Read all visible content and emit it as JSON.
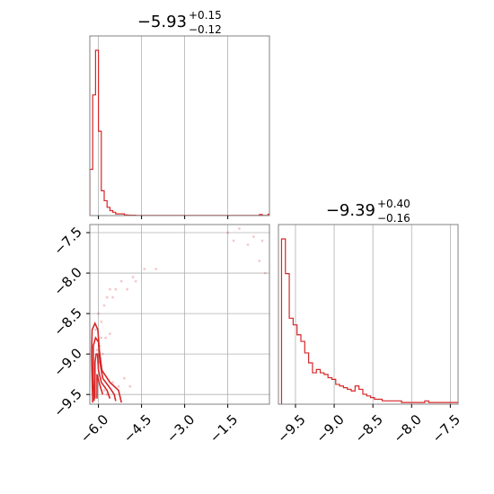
{
  "chart_data": [
    {
      "id": "hist_x",
      "type": "histogram",
      "title": {
        "value": "−5.93",
        "plus": "+0.15",
        "minus": "−0.12"
      },
      "xlim": [
        -6.3,
        -0.05
      ],
      "xticks": [
        -6.0,
        -4.5,
        -3.0,
        -1.5
      ],
      "bins": {
        "start": -6.3,
        "width": 0.1,
        "counts": [
          28,
          73,
          100,
          51,
          15,
          9,
          5,
          3,
          2,
          1,
          1,
          1,
          0.4,
          0.3,
          0.2,
          0.2,
          0.1,
          0.1,
          0.1,
          0.1,
          0.1,
          0.1,
          0.1,
          0.1,
          0.1,
          0.1,
          0.1,
          0.1,
          0.1,
          0.1,
          0.1,
          0.1,
          0.1,
          0.1,
          0.1,
          0.1,
          0.1,
          0.1,
          0.1,
          0.1,
          0.1,
          0.1,
          0.1,
          0.1,
          0.1,
          0.1,
          0.1,
          0.1,
          0.1,
          0.1,
          0.1,
          0.1,
          0.1,
          0.1,
          0.1,
          0.1,
          0.1,
          0.1,
          0.1,
          0.6,
          0.1,
          0.1,
          0.8
        ]
      },
      "color": "#d62728",
      "grid": true
    },
    {
      "id": "hist_y",
      "type": "histogram",
      "title": {
        "value": "−9.39",
        "plus": "+0.40",
        "minus": "−0.16"
      },
      "xlim": [
        -9.72,
        -7.4
      ],
      "xticks": [
        -9.5,
        -9.0,
        -8.5,
        -8.0,
        -7.5
      ],
      "bins": {
        "start": -9.68,
        "width": 0.05,
        "counts": [
          100,
          79,
          52,
          48,
          42,
          38,
          31,
          25,
          19,
          21,
          19,
          18,
          16,
          15,
          12,
          11,
          10,
          9,
          8,
          11,
          9,
          6,
          5,
          4,
          3,
          3,
          2,
          2,
          2,
          2,
          2,
          1,
          1,
          1,
          1,
          1,
          1,
          2,
          1,
          1,
          1,
          1,
          1,
          1,
          1,
          1,
          1
        ]
      },
      "color": "#d62728",
      "grid": true
    },
    {
      "id": "joint",
      "type": "scatter",
      "xlim": [
        -6.3,
        -0.05
      ],
      "ylim": [
        -9.62,
        -7.4
      ],
      "xticks": [
        -6.0,
        -4.5,
        -3.0,
        -1.5
      ],
      "yticks": [
        -7.5,
        -8.0,
        -8.5,
        -9.0,
        -9.5
      ],
      "points": [
        [
          -6.1,
          -8.7
        ],
        [
          -6.0,
          -8.5
        ],
        [
          -5.9,
          -8.6
        ],
        [
          -5.8,
          -8.4
        ],
        [
          -5.7,
          -8.3
        ],
        [
          -5.6,
          -8.2
        ],
        [
          -5.5,
          -8.3
        ],
        [
          -5.4,
          -8.2
        ],
        [
          -5.2,
          -8.1
        ],
        [
          -5.0,
          -8.2
        ],
        [
          -4.8,
          -8.05
        ],
        [
          -4.7,
          -8.1
        ],
        [
          -4.4,
          -7.95
        ],
        [
          -4.0,
          -7.95
        ],
        [
          -5.9,
          -8.8
        ],
        [
          -5.95,
          -8.9
        ],
        [
          -6.05,
          -8.95
        ],
        [
          -5.85,
          -9.0
        ],
        [
          -5.75,
          -8.8
        ],
        [
          -5.6,
          -8.75
        ],
        [
          -5.5,
          -9.35
        ],
        [
          -5.3,
          -9.4
        ],
        [
          -5.1,
          -9.3
        ],
        [
          -4.9,
          -9.4
        ],
        [
          -5.8,
          -9.45
        ],
        [
          -6.15,
          -9.2
        ],
        [
          -6.0,
          -9.1
        ],
        [
          -5.7,
          -9.5
        ],
        [
          -1.5,
          -7.5
        ],
        [
          -1.3,
          -7.6
        ],
        [
          -0.6,
          -7.55
        ],
        [
          -0.3,
          -7.6
        ],
        [
          -1.1,
          -7.45
        ],
        [
          -0.4,
          -7.85
        ],
        [
          -0.2,
          -8.0
        ],
        [
          -0.8,
          -7.65
        ]
      ],
      "contours": [
        [
          [
            -6.12,
            -9.55
          ],
          [
            -6.12,
            -9.1
          ],
          [
            -6.08,
            -9.0
          ],
          [
            -6.03,
            -9.0
          ],
          [
            -6.0,
            -9.2
          ],
          [
            -5.9,
            -9.35
          ],
          [
            -5.7,
            -9.45
          ],
          [
            -5.6,
            -9.55
          ]
        ],
        [
          [
            -6.15,
            -9.58
          ],
          [
            -6.18,
            -9.3
          ],
          [
            -6.18,
            -8.9
          ],
          [
            -6.1,
            -8.8
          ],
          [
            -6.0,
            -8.85
          ],
          [
            -5.95,
            -9.1
          ],
          [
            -5.85,
            -9.3
          ],
          [
            -5.6,
            -9.42
          ],
          [
            -5.45,
            -9.5
          ],
          [
            -5.4,
            -9.58
          ]
        ],
        [
          [
            -6.2,
            -9.6
          ],
          [
            -6.24,
            -9.0
          ],
          [
            -6.22,
            -8.7
          ],
          [
            -6.12,
            -8.62
          ],
          [
            -6.02,
            -8.7
          ],
          [
            -5.97,
            -8.95
          ],
          [
            -5.88,
            -9.2
          ],
          [
            -5.6,
            -9.35
          ],
          [
            -5.3,
            -9.45
          ],
          [
            -5.2,
            -9.6
          ]
        ],
        [
          [
            -6.05,
            -9.55
          ],
          [
            -6.05,
            -9.25
          ],
          [
            -5.98,
            -9.35
          ],
          [
            -5.85,
            -9.5
          ]
        ]
      ],
      "color": "#d62728",
      "grid": true
    }
  ]
}
